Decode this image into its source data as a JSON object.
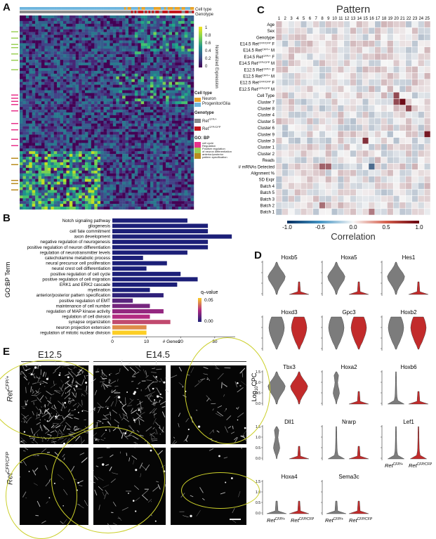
{
  "panels": {
    "A": "A",
    "B": "B",
    "C": "C",
    "D": "D",
    "E": "E"
  },
  "panelA": {
    "top_labels": [
      "Cell type",
      "Genotype"
    ],
    "colorbar_ticks": [
      "1",
      "0.8",
      "0.6",
      "0.4",
      "0.2",
      "0"
    ],
    "colorbar_title": "Normalized Expression",
    "legend": {
      "cell_type_title": "Cell type",
      "cell_types": [
        {
          "label": "Neuron",
          "color": "#e9a32a"
        },
        {
          "label": "Progenitor/Glia",
          "color": "#6fb5dd"
        }
      ],
      "genotype_title": "Genotype",
      "genotypes": [
        {
          "label": "Ret",
          "sup": "CFP/+",
          "color": "#8c8c8c"
        },
        {
          "label": "Ret",
          "sup": "CFP/CFP",
          "color": "#c4161c"
        }
      ],
      "gobp_title": "GO: BP",
      "gobp": [
        {
          "label": "cell cycle",
          "color": "#e8318b"
        },
        {
          "label": "Regulation",
          "color": "#9bd056"
        },
        {
          "label": "Positive regulation",
          "color": "#9bd056"
        },
        {
          "label": "of neuron differentiation",
          "color": "#9bd056"
        },
        {
          "label": "anterior/posterior",
          "color": "#b98c1e"
        },
        {
          "label": "pattern specification",
          "color": "#b98c1e"
        }
      ]
    }
  },
  "panelB": {
    "ylabel": "GO:BP Term",
    "xlabel": "# Genes",
    "legend_title": "q–value",
    "legend_ticks": [
      "0.05",
      "0.00"
    ]
  },
  "chart_data": [
    {
      "type": "bar",
      "panel": "B",
      "orientation": "horizontal",
      "ylabel": "GO:BP Term",
      "xlabel": "# Genes",
      "xlim": [
        0,
        36
      ],
      "xticks": [
        0,
        10,
        20,
        30
      ],
      "categories": [
        "Notch signaling pathway",
        "gliogenesis",
        "cell fate commitment",
        "axon development",
        "negative regulation of neurogenesis",
        "positive regulation of neuron differentiation",
        "regulation of neurotransmitter levels",
        "catecholamine metabolic process",
        "neural precursor cell proliferation",
        "neural crest cell differentiation",
        "positive regulation of cell cycle",
        "positive regulation of cell migration",
        "ERK1 and ERK2 cascade",
        "myelination",
        "anterior/posterior pattern specification",
        "positive regulation of EMT",
        "maintenance of cell number",
        "regulation of MAP kinase activity",
        "regulation of cell division",
        "synapse organization",
        "neuron projection extension",
        "regulation of mitotic nuclear division"
      ],
      "values": [
        22,
        28,
        28,
        35,
        28,
        28,
        22,
        9,
        16,
        10,
        20,
        25,
        19,
        11,
        15,
        6,
        11,
        15,
        11,
        17,
        10,
        10
      ],
      "q_values": [
        0.0,
        0.0,
        0.0,
        0.0,
        0.0,
        0.0,
        0.0,
        0.0,
        0.0,
        0.0,
        0.0,
        0.0,
        0.0,
        0.0,
        0.003,
        0.01,
        0.015,
        0.02,
        0.025,
        0.03,
        0.04,
        0.05
      ],
      "legend": {
        "title": "q–value",
        "range": [
          0.0,
          0.05
        ]
      }
    },
    {
      "type": "heatmap",
      "panel": "C",
      "title": "Pattern",
      "colorbar_label": "Correlation",
      "colorbar_ticks": [
        "-1.0",
        "-0.5",
        "0.0",
        "0.5",
        "1.0"
      ],
      "columns": [
        "1",
        "2",
        "3",
        "4",
        "5",
        "6",
        "7",
        "8",
        "9",
        "10",
        "11",
        "12",
        "13",
        "14",
        "15",
        "16",
        "17",
        "18",
        "19",
        "20",
        "21",
        "22",
        "23",
        "24",
        "25"
      ],
      "rows": [
        {
          "label": "Age"
        },
        {
          "label": "Sex"
        },
        {
          "label": "Genotype"
        },
        {
          "label": "E14.5 Ret",
          "sup": "CFP/CFP",
          "suffix": " F"
        },
        {
          "label": "E14.5 Ret",
          "sup": "CFP/+",
          "suffix": " M"
        },
        {
          "label": "E14.5 Ret",
          "sup": "CFP/+",
          "suffix": " F"
        },
        {
          "label": "E14.5 Ret",
          "sup": "CFP/CFP",
          "suffix": " M"
        },
        {
          "label": "E12.5 Ret",
          "sup": "CFP/+",
          "suffix": " F"
        },
        {
          "label": "E12.5 Ret",
          "sup": "CFP/+",
          "suffix": " M"
        },
        {
          "label": "E12.5 Ret",
          "sup": "CFP/CFP",
          "suffix": " F"
        },
        {
          "label": "E12.5 Ret",
          "sup": "CFP/CFP",
          "suffix": " M"
        },
        {
          "label": "Cell Type"
        },
        {
          "label": "Cluster 7"
        },
        {
          "label": "Cluster 8"
        },
        {
          "label": "Cluster 4"
        },
        {
          "label": "Cluster 5"
        },
        {
          "label": "Cluster 6"
        },
        {
          "label": "Cluster 9"
        },
        {
          "label": "Cluster 3"
        },
        {
          "label": "Cluster 1"
        },
        {
          "label": "Cluster 2"
        },
        {
          "label": "Reads"
        },
        {
          "label": "# mRNAs Detected"
        },
        {
          "label": "Alignment %"
        },
        {
          "label": "SD Expr"
        },
        {
          "label": "Batch 4"
        },
        {
          "label": "Batch 5"
        },
        {
          "label": "Batch 3"
        },
        {
          "label": "Batch 2"
        },
        {
          "label": "Batch 1"
        }
      ],
      "highlights": [
        {
          "row": "Cluster 7",
          "col": "21",
          "value": 0.95
        },
        {
          "row": "Cluster 7",
          "col": "20",
          "value": 0.7
        },
        {
          "row": "Cell Type",
          "col": "20",
          "value": 0.7
        },
        {
          "row": "Cluster 8",
          "col": "22",
          "value": 0.7
        },
        {
          "row": "Cluster 9",
          "col": "25",
          "value": 0.9
        },
        {
          "row": "Cluster 3",
          "col": "15",
          "value": 0.8
        },
        {
          "row": "# mRNAs Detected",
          "col": "8",
          "value": 0.6
        },
        {
          "row": "# mRNAs Detected",
          "col": "9",
          "value": 0.6
        },
        {
          "row": "# mRNAs Detected",
          "col": "16",
          "value": -0.7
        },
        {
          "row": "Batch 2",
          "col": "8",
          "value": 0.55
        },
        {
          "row": "Batch 1",
          "col": "16",
          "value": 0.5
        }
      ]
    },
    {
      "type": "violin",
      "panel": "D",
      "ylabel": "Log",
      "ylabel_sub": "10",
      "ylabel_suffix": "CPC",
      "groups": [
        {
          "label": "Ret",
          "sup": "CFP/+",
          "color": "#7c7c7c"
        },
        {
          "label": "Ret",
          "sup": "CFP/CFP",
          "color": "#c22b2b"
        }
      ],
      "yticks": [
        "1.5",
        "1.0",
        "0.5",
        "0.0"
      ],
      "genes": [
        {
          "name": "Hoxb5",
          "ret_cfp_het_shape": "wide",
          "ret_cfp_hom_shape": "low"
        },
        {
          "name": "Hoxa5",
          "ret_cfp_het_shape": "wide",
          "ret_cfp_hom_shape": "low"
        },
        {
          "name": "Hes1",
          "ret_cfp_het_shape": "wide",
          "ret_cfp_hom_shape": "low"
        },
        {
          "name": "Hoxd3",
          "ret_cfp_het_shape": "full",
          "ret_cfp_hom_shape": "full"
        },
        {
          "name": "Gpc3",
          "ret_cfp_het_shape": "full",
          "ret_cfp_hom_shape": "full"
        },
        {
          "name": "Hoxb2",
          "ret_cfp_het_shape": "full",
          "ret_cfp_hom_shape": "full"
        },
        {
          "name": "Tbx3",
          "ret_cfp_het_shape": "wide",
          "ret_cfp_hom_shape": "wide"
        },
        {
          "name": "Hoxa2",
          "ret_cfp_het_shape": "narrow",
          "ret_cfp_hom_shape": "low"
        },
        {
          "name": "Hoxb6",
          "ret_cfp_het_shape": "thin",
          "ret_cfp_hom_shape": "low"
        },
        {
          "name": "Dll1",
          "ret_cfp_het_shape": "narrow",
          "ret_cfp_hom_shape": "low"
        },
        {
          "name": "Nrarp",
          "ret_cfp_het_shape": "thin",
          "ret_cfp_hom_shape": "low"
        },
        {
          "name": "Lef1",
          "ret_cfp_het_shape": "thin",
          "ret_cfp_hom_shape": "thin"
        },
        {
          "name": "Hoxa4",
          "ret_cfp_het_shape": "low",
          "ret_cfp_hom_shape": "low"
        },
        {
          "name": "Sema3c",
          "ret_cfp_het_shape": "low",
          "ret_cfp_hom_shape": "low"
        }
      ]
    }
  ],
  "panelD_axis": {
    "ylabel_prefix": "Log",
    "ylabel_sub": "10",
    "ylabel_suffix": "CPC",
    "x_het": "Ret",
    "x_het_sup": "CFP/+",
    "x_hom": "Ret",
    "x_hom_sup": "CFP/CFP"
  },
  "panelE": {
    "col_e125": "E12.5",
    "col_e145": "E14.5",
    "row1_label": "Ret",
    "row1_sup": "CFP/+",
    "row2_label": "Ret",
    "row2_sup": "CFP/CFP"
  }
}
